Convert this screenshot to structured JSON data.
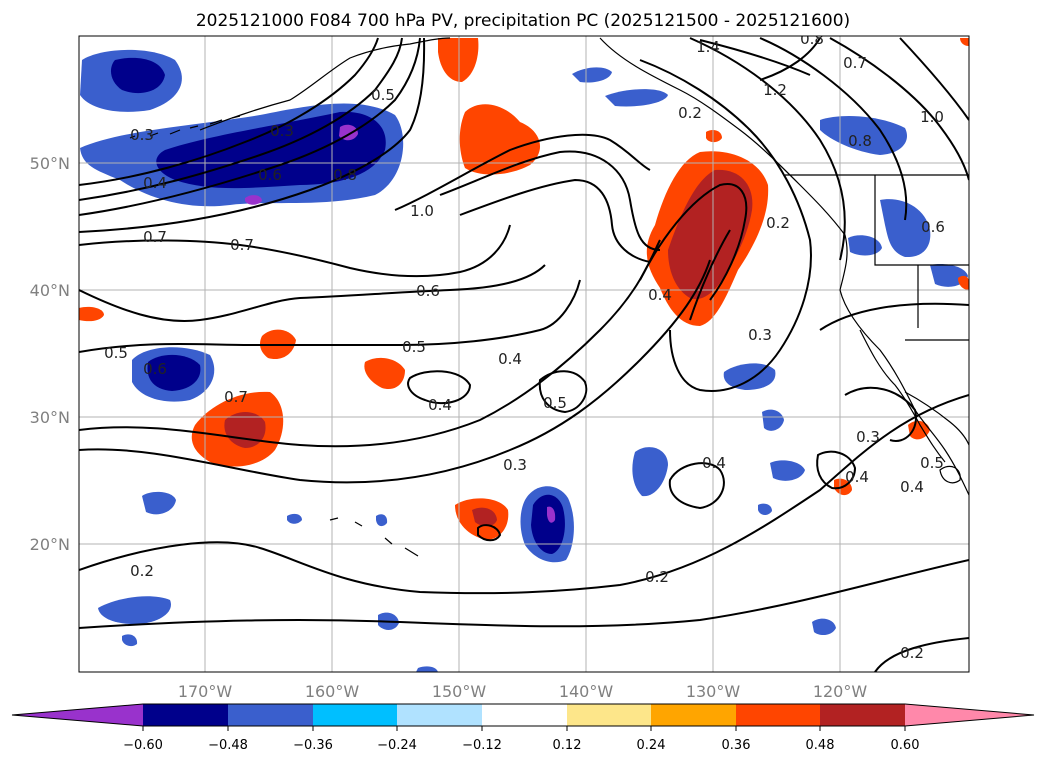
{
  "title": "2025121000 F084 700 hPa PV, precipitation PC (2025121500 - 2025121600)",
  "lat_labels": [
    "50°N",
    "40°N",
    "30°N",
    "20°N"
  ],
  "lon_labels": [
    "170°W",
    "160°W",
    "150°W",
    "140°W",
    "130°W",
    "120°W"
  ],
  "contour_labels": [
    "1.4",
    "0.8",
    "0.7",
    "1.2",
    "1.0",
    "0.8",
    "0.6",
    "0.2",
    "0.3",
    "0.5",
    "0.2",
    "0.3",
    "0.4",
    "0.6",
    "0.8",
    "1.0",
    "0.7",
    "0.7",
    "0.6",
    "0.4",
    "0.3",
    "0.5",
    "0.6",
    "0.7",
    "0.5",
    "0.4",
    "0.4",
    "0.5",
    "0.3",
    "0.4",
    "0.3",
    "0.4",
    "0.4",
    "0.5",
    "0.2",
    "0.2",
    "0.2"
  ],
  "colorbar": {
    "ticks": [
      "−0.60",
      "−0.48",
      "−0.36",
      "−0.24",
      "−0.12",
      "0.12",
      "0.24",
      "0.36",
      "0.48",
      "0.60"
    ],
    "colors": [
      "#9932cc",
      "#00008b",
      "#3a5fcd",
      "#00bfff",
      "#b0e2ff",
      "#ffffff",
      "#fde68a",
      "#ffa500",
      "#ff4500",
      "#b22222",
      "#ff88aa"
    ]
  }
}
